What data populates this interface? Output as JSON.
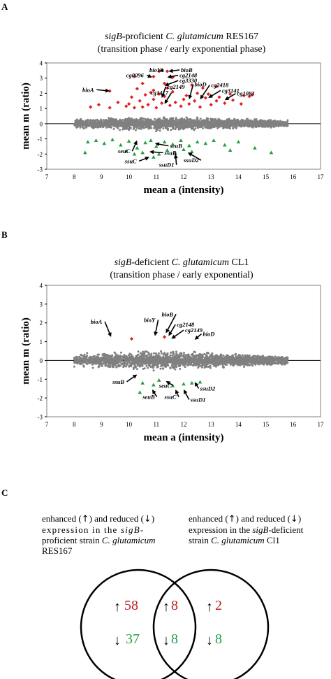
{
  "panels": {
    "a": {
      "letter": "A",
      "title_line1_italic": "sigB",
      "title_line1_rest": "-proficient ",
      "title_line1_italic2": "C. glutamicum",
      "title_line1_tail": " RES167",
      "title_line2": "(transition phase / early exponential phase)"
    },
    "b": {
      "letter": "B",
      "title_line1_italic": "sigB",
      "title_line1_rest": "-deficient ",
      "title_line1_italic2": "C. glutamicum",
      "title_line1_tail": " CL1",
      "title_line2": "(transition phase / early exponential)"
    },
    "c": {
      "letter": "C"
    }
  },
  "chart_data": [
    {
      "type": "scatter",
      "panel": "A",
      "xlabel": "mean a (intensity)",
      "ylabel": "mean m (ratio)",
      "xlim": [
        7,
        17
      ],
      "ylim": [
        -3,
        4
      ],
      "xticks": [
        "7",
        "8",
        "9",
        "10",
        "11",
        "12",
        "13",
        "14",
        "15",
        "16",
        "17"
      ],
      "yticks": [
        "-3",
        "-2",
        "-1",
        "0",
        "1",
        "2",
        "3",
        "4"
      ],
      "colors": {
        "background": "#808080",
        "up": "#e02020",
        "down": "#20a040"
      },
      "up_points": [
        [
          9.9,
          1.15
        ],
        [
          10.0,
          1.3
        ],
        [
          10.2,
          1.05
        ],
        [
          10.4,
          1.5
        ],
        [
          10.5,
          1.1
        ],
        [
          10.7,
          1.25
        ],
        [
          10.9,
          1.6
        ],
        [
          11.0,
          1.05
        ],
        [
          11.2,
          1.35
        ],
        [
          11.3,
          1.8
        ],
        [
          11.5,
          1.2
        ],
        [
          11.7,
          1.4
        ],
        [
          11.9,
          1.15
        ],
        [
          12.0,
          1.6
        ],
        [
          12.2,
          1.3
        ],
        [
          12.4,
          1.5
        ],
        [
          12.6,
          1.1
        ],
        [
          12.8,
          1.7
        ],
        [
          13.0,
          1.25
        ],
        [
          13.2,
          1.5
        ],
        [
          13.5,
          1.35
        ],
        [
          13.8,
          1.55
        ],
        [
          14.1,
          1.3
        ],
        [
          14.4,
          1.8
        ],
        [
          8.6,
          1.1
        ],
        [
          8.9,
          1.25
        ],
        [
          9.3,
          1.05
        ],
        [
          9.6,
          1.4
        ],
        [
          10.1,
          1.75
        ],
        [
          10.6,
          1.9
        ],
        [
          10.8,
          2.05
        ],
        [
          11.1,
          1.95
        ],
        [
          11.6,
          2.1
        ],
        [
          12.1,
          1.85
        ],
        [
          12.5,
          2.0
        ],
        [
          12.9,
          1.95
        ],
        [
          13.3,
          1.75
        ],
        [
          13.7,
          1.95
        ],
        [
          10.3,
          2.3
        ],
        [
          10.9,
          2.2
        ],
        [
          11.4,
          2.35
        ],
        [
          10.2,
          3.1
        ],
        [
          10.9,
          3.1
        ],
        [
          11.1,
          3.45
        ],
        [
          11.4,
          3.45
        ],
        [
          11.6,
          3.05
        ],
        [
          9.3,
          2.15
        ],
        [
          10.5,
          2.65
        ],
        [
          11.3,
          2.65
        ],
        [
          12.3,
          2.55
        ],
        [
          12.7,
          2.35
        ],
        [
          13.2,
          2.45
        ],
        [
          14.5,
          1.9
        ],
        [
          14.2,
          1.85
        ]
      ],
      "down_points": [
        [
          8.5,
          -1.2
        ],
        [
          8.8,
          -1.1
        ],
        [
          9.1,
          -1.3
        ],
        [
          9.4,
          -1.05
        ],
        [
          9.7,
          -1.4
        ],
        [
          10.0,
          -1.15
        ],
        [
          10.3,
          -1.6
        ],
        [
          10.6,
          -1.25
        ],
        [
          10.8,
          -1.1
        ],
        [
          11.0,
          -1.5
        ],
        [
          11.3,
          -1.2
        ],
        [
          11.6,
          -1.35
        ],
        [
          11.9,
          -1.1
        ],
        [
          12.2,
          -1.45
        ],
        [
          12.5,
          -1.2
        ],
        [
          12.8,
          -1.3
        ],
        [
          13.1,
          -1.1
        ],
        [
          13.5,
          -1.4
        ],
        [
          14.0,
          -1.2
        ],
        [
          14.6,
          -1.6
        ],
        [
          15.2,
          -1.9
        ],
        [
          8.4,
          -1.9
        ],
        [
          9.9,
          -1.8
        ],
        [
          10.5,
          -1.9
        ],
        [
          11.1,
          -2.0
        ],
        [
          11.4,
          -1.75
        ],
        [
          10.9,
          -2.2
        ],
        [
          11.7,
          -1.95
        ],
        [
          12.3,
          -1.85
        ],
        [
          12.0,
          -1.7
        ],
        [
          13.7,
          -1.75
        ],
        [
          10.2,
          -2.0
        ]
      ],
      "labels": [
        {
          "text": "bioY",
          "x": 10.75,
          "y": 3.4,
          "ax": 11.1,
          "ay": 3.45
        },
        {
          "text": "bioB",
          "x": 11.9,
          "y": 3.4,
          "ax": 11.45,
          "ay": 3.45
        },
        {
          "text": "cg0096",
          "x": 9.9,
          "y": 3.05,
          "ax": 10.85,
          "ay": 3.05
        },
        {
          "text": "cg2148",
          "x": 11.85,
          "y": 3.05,
          "ax": 11.4,
          "ay": 3.05
        },
        {
          "text": "cg3330",
          "x": 11.85,
          "y": 2.7,
          "ax": 11.3,
          "ay": 2.5
        },
        {
          "text": "bioA",
          "x": 8.3,
          "y": 2.1,
          "ax": 9.3,
          "ay": 2.15
        },
        {
          "text": "cg2149",
          "x": 11.4,
          "y": 2.3,
          "ax": 11.2,
          "ay": 1.7
        },
        {
          "text": "cg1417",
          "x": 10.8,
          "y": 1.9,
          "ax": 11.3,
          "ay": 1.3
        },
        {
          "text": "bioD",
          "x": 12.4,
          "y": 2.45,
          "ax": 12.2,
          "ay": 1.6
        },
        {
          "text": "cg2418",
          "x": 13.0,
          "y": 2.4,
          "ax": 12.6,
          "ay": 1.6
        },
        {
          "text": "cg3141",
          "x": 13.4,
          "y": 2.05,
          "ax": 12.9,
          "ay": 1.7
        },
        {
          "text": "cg1083",
          "x": 13.95,
          "y": 1.85,
          "ax": 13.5,
          "ay": 1.55
        },
        {
          "text": "seuC",
          "x": 9.6,
          "y": -1.95,
          "ax": 10.3,
          "ay": -1.1
        },
        {
          "text": "seuB",
          "x": 11.5,
          "y": -1.6,
          "ax": 10.95,
          "ay": -1.3
        },
        {
          "text": "ssuB",
          "x": 11.3,
          "y": -2.05,
          "ax": 10.75,
          "ay": -1.85
        },
        {
          "text": "ssuC",
          "x": 9.85,
          "y": -2.6,
          "ax": 10.75,
          "ay": -2.2
        },
        {
          "text": "ssuD2",
          "x": 12.0,
          "y": -2.55,
          "ax": 12.15,
          "ay": -1.9
        },
        {
          "text": "ssuD1",
          "x": 11.1,
          "y": -2.85,
          "ax": 11.7,
          "ay": -2.0
        }
      ]
    },
    {
      "type": "scatter",
      "panel": "B",
      "xlabel": "mean a (intensity)",
      "ylabel": "mean m (ratio)",
      "xlim": [
        7,
        17
      ],
      "ylim": [
        -3,
        4
      ],
      "xticks": [
        "7",
        "8",
        "9",
        "10",
        "11",
        "12",
        "13",
        "14",
        "15",
        "16",
        "17"
      ],
      "yticks": [
        "-3",
        "-2",
        "-1",
        "0",
        "1",
        "2",
        "3",
        "4"
      ],
      "colors": {
        "background": "#808080",
        "up": "#e02020",
        "down": "#20a040"
      },
      "up_points": [
        [
          10.1,
          1.15
        ],
        [
          11.3,
          1.25
        ]
      ],
      "down_points": [
        [
          10.5,
          -1.2
        ],
        [
          10.9,
          -1.3
        ],
        [
          11.1,
          -1.05
        ],
        [
          11.6,
          -1.35
        ],
        [
          12.0,
          -1.25
        ],
        [
          12.3,
          -1.2
        ],
        [
          12.6,
          -1.15
        ],
        [
          10.4,
          -1.7
        ]
      ],
      "labels": [
        {
          "text": "bioA",
          "x": 8.6,
          "y": 1.95,
          "ax": 9.35,
          "ay": 1.25
        },
        {
          "text": "bioY",
          "x": 10.55,
          "y": 2.05,
          "ax": 10.95,
          "ay": 1.3
        },
        {
          "text": "bioB",
          "x": 11.2,
          "y": 2.35,
          "ax": 11.35,
          "ay": 1.45
        },
        {
          "text": "cg2148",
          "x": 11.75,
          "y": 1.8,
          "ax": 11.45,
          "ay": 1.3
        },
        {
          "text": "cg2149",
          "x": 12.05,
          "y": 1.5,
          "ax": 11.55,
          "ay": 1.15
        },
        {
          "text": "bioD",
          "x": 12.7,
          "y": 1.3,
          "ax": 12.4,
          "ay": 1.1
        },
        {
          "text": "ssuB",
          "x": 9.4,
          "y": -1.25,
          "ax": 10.3,
          "ay": -0.75
        },
        {
          "text": "seuC",
          "x": 11.1,
          "y": -1.45,
          "ax": 11.35,
          "ay": -1.1
        },
        {
          "text": "seuB",
          "x": 10.5,
          "y": -2.05,
          "ax": 10.85,
          "ay": -1.55
        },
        {
          "text": "ssuC",
          "x": 11.3,
          "y": -2.05,
          "ax": 11.7,
          "ay": -1.55
        },
        {
          "text": "ssuD2",
          "x": 12.6,
          "y": -1.6,
          "ax": 12.4,
          "ay": -1.15
        },
        {
          "text": "ssuD1",
          "x": 12.25,
          "y": -2.2,
          "ax": 12.0,
          "ay": -1.55
        }
      ]
    }
  ],
  "venn": {
    "left_caption": {
      "pre": "enhanced (",
      "mid": ") and reduced (",
      "post": ")",
      "line2": "expression in the ",
      "line2_italic": "sigB",
      "line2_tail": "-",
      "line3": "proficient strain ",
      "line3_italic": "C. glutamicum",
      "line4": "RES167"
    },
    "right_caption": {
      "pre": "enhanced (",
      "mid": ") and reduced (",
      "post": ")",
      "line2": "expression in the ",
      "line2_italic": "sigB",
      "line2_tail": "-deficient",
      "line3": "strain ",
      "line3_italic": "C. glutamicum",
      "line3_tail": " Cl1"
    },
    "up_arrow": "↑",
    "down_arrow": "↓",
    "left_only_up": "58",
    "left_only_down": "37",
    "shared_up": "8",
    "shared_down": "8",
    "right_only_up": "2",
    "right_only_down": "8",
    "colors": {
      "up": "#c02020",
      "down": "#20a040"
    }
  }
}
